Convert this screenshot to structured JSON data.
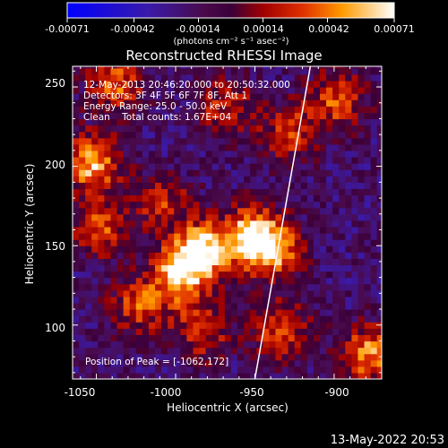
{
  "chart_data": {
    "type": "heatmap",
    "title": "Reconstructed RHESSI Image",
    "xlabel": "Heliocentric X (arcsec)",
    "ylabel": "Heliocentric Y (arcsec)",
    "xlim": [
      -1065,
      -870
    ],
    "ylim": [
      66,
      263
    ],
    "x_ticks": [
      -1050,
      -1000,
      -950,
      -900
    ],
    "y_ticks": [
      100,
      150,
      200,
      250
    ],
    "colorbar": {
      "ticks": [
        -0.00071,
        -0.00042,
        -0.00014,
        0.00014,
        0.00042,
        0.00071
      ],
      "tick_labels": [
        "-0.00071",
        "-0.00042",
        "-0.00014",
        "0.00014",
        "0.00042",
        "0.00071"
      ],
      "unit_label": "(photons cm⁻² s⁻¹ asec⁻²)",
      "range": [
        -0.00071,
        0.00071
      ]
    },
    "annotations": [
      "12-May-2013 20:46:20.000 to 20:50:32.000",
      "Detectors: 3F 4F 5F 6F 7F 8F, Att 1",
      "Energy Range: 25.0 - 50.0 keV",
      "Clean    Total counts: 1.67E+04"
    ],
    "peak_label": "Position of Peak = [-1062,172]",
    "peak": {
      "x": -1062,
      "y": 172
    },
    "limb_line": [
      [
        -950,
        66
      ],
      [
        -915,
        263
      ]
    ],
    "grid": false,
    "bright_regions": [
      {
        "x": -985,
        "y": 145,
        "amp": 0.9
      },
      {
        "x": -955,
        "y": 155,
        "amp": 0.8
      },
      {
        "x": -940,
        "y": 145,
        "amp": 0.7
      },
      {
        "x": -1000,
        "y": 130,
        "amp": 0.75
      },
      {
        "x": -1010,
        "y": 175,
        "amp": 0.45
      },
      {
        "x": -1040,
        "y": 250,
        "amp": 0.6
      },
      {
        "x": -1055,
        "y": 200,
        "amp": 0.8
      },
      {
        "x": -1050,
        "y": 160,
        "amp": 0.55
      },
      {
        "x": -1025,
        "y": 110,
        "amp": 0.55
      },
      {
        "x": -985,
        "y": 95,
        "amp": 0.5
      },
      {
        "x": -935,
        "y": 95,
        "amp": 0.55
      },
      {
        "x": -880,
        "y": 80,
        "amp": 0.7
      },
      {
        "x": -900,
        "y": 240,
        "amp": 0.55
      },
      {
        "x": -930,
        "y": 220,
        "amp": 0.5
      },
      {
        "x": -970,
        "y": 235,
        "amp": 0.45
      }
    ]
  },
  "footer_timestamp": "13-May-2022 20:53"
}
